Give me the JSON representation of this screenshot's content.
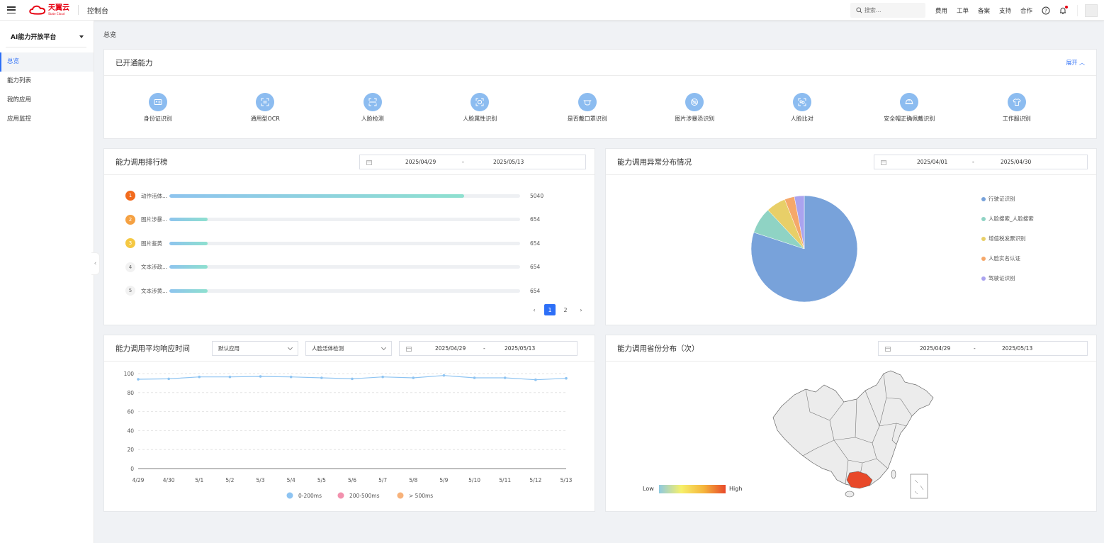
{
  "header": {
    "logo_cn": "天翼云",
    "logo_en": "State Cloud",
    "console": "控制台",
    "search_placeholder": "搜索...",
    "links": [
      "费用",
      "工单",
      "备案",
      "支持",
      "合作"
    ]
  },
  "sidebar": {
    "platform": "AI能力开放平台",
    "items": [
      {
        "label": "总览",
        "active": true
      },
      {
        "label": "能力列表",
        "active": false
      },
      {
        "label": "我的应用",
        "active": false
      },
      {
        "label": "应用监控",
        "active": false
      }
    ]
  },
  "breadcrumb": "总览",
  "abilities_card": {
    "title": "已开通能力",
    "expand": "展开",
    "items": [
      {
        "label": "身份证识别",
        "icon": "id-card-icon"
      },
      {
        "label": "通用型OCR",
        "icon": "ocr-scan-icon"
      },
      {
        "label": "人脸检测",
        "icon": "face-scan-icon"
      },
      {
        "label": "人脸属性识别",
        "icon": "face-attribute-icon"
      },
      {
        "label": "是否戴口罩识别",
        "icon": "mask-icon"
      },
      {
        "label": "图片涉暴恐识别",
        "icon": "forbidden-image-icon"
      },
      {
        "label": "人脸比对",
        "icon": "face-compare-icon"
      },
      {
        "label": "安全帽正确佩戴识别",
        "icon": "helmet-icon"
      },
      {
        "label": "工作服识别",
        "icon": "uniform-icon"
      }
    ]
  },
  "ranking_card": {
    "title": "能力调用排行榜",
    "date_from": "2025/04/29",
    "date_sep": "-",
    "date_to": "2025/05/13",
    "rows": [
      {
        "rank": "1",
        "name": "动作活体...",
        "value": 5040,
        "value_text": "5040",
        "color": "#f26b1d"
      },
      {
        "rank": "2",
        "name": "图片涉暴...",
        "value": 654,
        "value_text": "654",
        "color": "#f5a142"
      },
      {
        "rank": "3",
        "name": "图片鉴黄",
        "value": 654,
        "value_text": "654",
        "color": "#f5c842"
      },
      {
        "rank": "4",
        "name": "文本涉政...",
        "value": 654,
        "value_text": "654",
        "color": ""
      },
      {
        "rank": "5",
        "name": "文本涉黄...",
        "value": 654,
        "value_text": "654",
        "color": ""
      }
    ],
    "max_value": 6000,
    "pages": [
      "1",
      "2"
    ],
    "current_page": "1"
  },
  "anomaly_card": {
    "title": "能力调用异常分布情况",
    "date_from": "2025/04/01",
    "date_sep": "-",
    "date_to": "2025/04/30"
  },
  "response_card": {
    "title": "能力调用平均响应时间",
    "app_select": "默认应用",
    "ability_select": "人脸活体检测",
    "date_from": "2025/04/29",
    "date_sep": "-",
    "date_to": "2025/05/13"
  },
  "province_card": {
    "title": "能力调用省份分布（次）",
    "date_from": "2025/04/29",
    "date_sep": "-",
    "date_to": "2025/05/13",
    "scale_low": "Low",
    "scale_high": "High",
    "highlight_color": "#e8492a"
  },
  "chart_data": [
    {
      "type": "pie",
      "labels": [
        "行驶证识别",
        "人脸搜索_人脸搜索",
        "增值税发票识别",
        "人脸实名认证",
        "驾驶证识别"
      ],
      "values": [
        80,
        8,
        6,
        3,
        3
      ],
      "colors": [
        "#78a2da",
        "#8fd3c4",
        "#e8cf68",
        "#f5a86a",
        "#aaa3ef"
      ],
      "legend_position": "right"
    },
    {
      "type": "line",
      "x": [
        "4/29",
        "4/30",
        "5/1",
        "5/2",
        "5/3",
        "5/4",
        "5/5",
        "5/6",
        "5/7",
        "5/8",
        "5/9",
        "5/10",
        "5/11",
        "5/12",
        "5/13"
      ],
      "series": [
        {
          "name": "0-200ms",
          "color": "#8ec4f2",
          "values": [
            94,
            94.5,
            96.5,
            96.5,
            97,
            96.5,
            95.5,
            94.5,
            96.5,
            95.5,
            98,
            95.5,
            95.5,
            93.5,
            95
          ]
        }
      ],
      "legend": [
        {
          "name": "0-200ms",
          "color": "#8ec4f2"
        },
        {
          "name": "200-500ms",
          "color": "#f291ae"
        },
        {
          "name": "> 500ms",
          "color": "#f7b27a"
        }
      ],
      "yticks": [
        "0",
        "20",
        "40",
        "60",
        "80",
        "100"
      ],
      "ylim": [
        0,
        100
      ],
      "grid": true
    }
  ]
}
